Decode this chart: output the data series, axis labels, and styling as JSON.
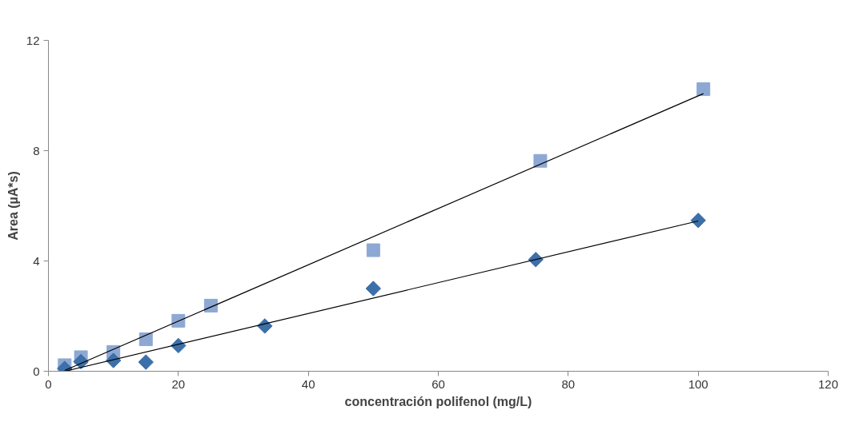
{
  "chart_data": {
    "type": "scatter",
    "xlabel": "concentración polifenol (mg/L)",
    "ylabel": "Area (µA*s)",
    "xlim": [
      0,
      120
    ],
    "xticks": [
      0,
      20,
      40,
      60,
      80,
      100,
      120
    ],
    "ylim": [
      0,
      12
    ],
    "yticks": [
      0,
      4,
      8,
      12
    ],
    "grid": false,
    "series": [
      {
        "marker": "square",
        "color": "#8ea8d4",
        "x": [
          2.5,
          5,
          10,
          15,
          20,
          25,
          50,
          75.7,
          100.8
        ],
        "values": [
          0.22,
          0.51,
          0.7,
          1.16,
          1.83,
          2.38,
          4.39,
          7.63,
          10.23
        ]
      },
      {
        "marker": "diamond",
        "color": "#3d6fa8",
        "x": [
          2.5,
          5,
          10,
          15,
          20,
          33.3,
          50,
          75,
          100
        ],
        "values": [
          0.1,
          0.35,
          0.39,
          0.33,
          0.93,
          1.64,
          3.0,
          4.05,
          5.47
        ]
      },
      {
        "type": "line",
        "marker": "none",
        "line_style": "solid",
        "color": "#000000",
        "x": [
          2.5,
          100
        ],
        "values": [
          0.0,
          5.45
        ]
      },
      {
        "type": "line",
        "marker": "none",
        "line_style": "solid",
        "color": "#000000",
        "x": [
          2.5,
          100.8
        ],
        "values": [
          0.03,
          10.07
        ]
      }
    ]
  }
}
